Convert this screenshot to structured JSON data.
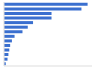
{
  "chart_data": {
    "type": "bar",
    "orientation": "horizontal",
    "categories": [
      null,
      null,
      null,
      null,
      null,
      null,
      null,
      null,
      null,
      null,
      null,
      null,
      null,
      null
    ],
    "values": [
      95,
      88,
      54,
      54,
      33,
      27,
      21,
      12,
      9,
      7,
      6,
      5,
      4,
      2
    ],
    "color": "#3a6fcf",
    "xlim": [
      0,
      100
    ],
    "grid": false,
    "tick_labels": false
  }
}
